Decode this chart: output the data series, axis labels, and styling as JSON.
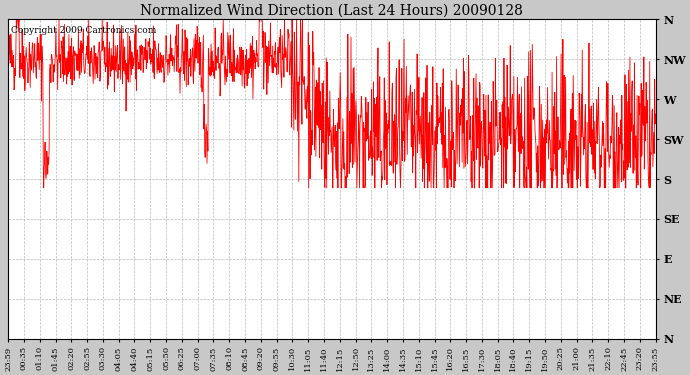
{
  "title": "Normalized Wind Direction (Last 24 Hours) 20090128",
  "copyright_text": "Copyright 2009 Cartronics.com",
  "line_color": "#FF0000",
  "background_color": "#C8C8C8",
  "plot_bg_color": "#FFFFFF",
  "grid_color": "#AAAAAA",
  "ytick_labels": [
    "N",
    "NW",
    "W",
    "SW",
    "S",
    "SE",
    "E",
    "NE",
    "N"
  ],
  "ytick_values": [
    360,
    315,
    270,
    225,
    180,
    135,
    90,
    45,
    0
  ],
  "ylim": [
    0,
    360
  ],
  "xtick_labels": [
    "23:59",
    "00:35",
    "01:10",
    "01:45",
    "02:20",
    "02:55",
    "03:30",
    "04:05",
    "04:40",
    "05:15",
    "05:50",
    "06:25",
    "07:00",
    "07:35",
    "08:10",
    "08:45",
    "09:20",
    "09:55",
    "10:30",
    "11:05",
    "11:40",
    "12:15",
    "12:50",
    "13:25",
    "14:00",
    "14:35",
    "15:10",
    "15:45",
    "16:20",
    "16:55",
    "17:30",
    "18:05",
    "18:40",
    "19:15",
    "19:50",
    "20:25",
    "21:00",
    "21:35",
    "22:10",
    "22:45",
    "23:20",
    "23:55"
  ],
  "seed": 42
}
